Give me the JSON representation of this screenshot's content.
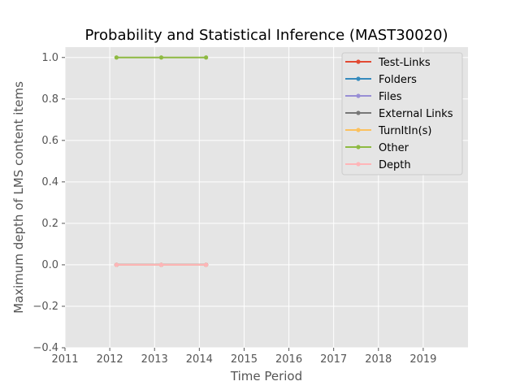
{
  "chart_data": {
    "type": "line",
    "title": "Probability and Statistical Inference (MAST30020)",
    "xlabel": "Time Period",
    "ylabel": "Maximum depth of LMS content items",
    "xlim": [
      2011,
      2020
    ],
    "ylim": [
      -0.4,
      1.05
    ],
    "xticks": [
      2011,
      2012,
      2013,
      2014,
      2015,
      2016,
      2017,
      2018,
      2019
    ],
    "yticks": [
      -0.4,
      -0.2,
      0.0,
      0.2,
      0.4,
      0.6,
      0.8,
      1.0
    ],
    "xtick_labels": [
      "2011",
      "2012",
      "2013",
      "2014",
      "2015",
      "2016",
      "2017",
      "2018",
      "2019"
    ],
    "ytick_labels": [
      "−0.4",
      "−0.2",
      "0.0",
      "0.2",
      "0.4",
      "0.6",
      "0.8",
      "1.0"
    ],
    "grid": true,
    "background": "#e5e5e5",
    "legend_position": "top-right",
    "x": [
      2012.15,
      2013.15,
      2014.15
    ],
    "series": [
      {
        "name": "Test-Links",
        "values": [
          0,
          0,
          0
        ],
        "color": "#e24a33"
      },
      {
        "name": "Folders",
        "values": [
          0,
          0,
          0
        ],
        "color": "#348abd"
      },
      {
        "name": "Files",
        "values": [
          0,
          0,
          0
        ],
        "color": "#988ed5"
      },
      {
        "name": "External Links",
        "values": [
          0,
          0,
          0
        ],
        "color": "#777777"
      },
      {
        "name": "TurnItIn(s)",
        "values": [
          0,
          0,
          0
        ],
        "color": "#fbc15e"
      },
      {
        "name": "Other",
        "values": [
          1,
          1,
          1
        ],
        "color": "#8eba42"
      },
      {
        "name": "Depth",
        "values": [
          0,
          0,
          0
        ],
        "color": "#ffb5b8"
      }
    ]
  }
}
